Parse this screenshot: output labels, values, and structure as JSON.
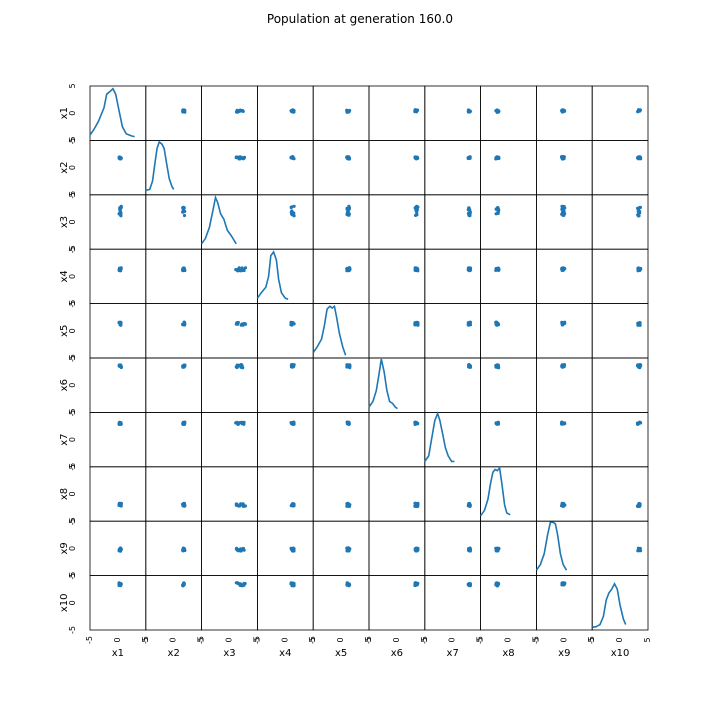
{
  "chart_data": {
    "type": "scatter",
    "title": "Population at generation 160.0",
    "variables": [
      "x1",
      "x2",
      "x3",
      "x4",
      "x5",
      "x6",
      "x7",
      "x8",
      "x9",
      "x10"
    ],
    "axis_range": [
      -5,
      5
    ],
    "tick_labels": [
      "-5",
      "0",
      "5"
    ],
    "grid": false,
    "color": "#1f77b4",
    "diagonal": "kde",
    "point_centers": [
      0.4,
      1.8,
      2.0,
      1.3,
      1.3,
      3.5,
      3.0,
      -2.0,
      -0.2,
      3.4
    ],
    "point_spread": [
      0.05,
      0.05,
      0.5,
      0.1,
      0.1,
      0.1,
      0.05,
      0.1,
      0.1,
      0.1
    ],
    "kde_curves": [
      [
        [
          -5,
          0.1
        ],
        [
          -4.3,
          0.2
        ],
        [
          -3.5,
          0.35
        ],
        [
          -2.5,
          0.6
        ],
        [
          -2.0,
          0.85
        ],
        [
          -1.4,
          0.9
        ],
        [
          -0.9,
          0.95
        ],
        [
          -0.4,
          0.85
        ],
        [
          0.2,
          0.55
        ],
        [
          0.8,
          0.25
        ],
        [
          1.5,
          0.12
        ],
        [
          2.5,
          0.08
        ],
        [
          3,
          0.07
        ]
      ],
      [
        [
          -5,
          0.08
        ],
        [
          -4.3,
          0.1
        ],
        [
          -3.8,
          0.25
        ],
        [
          -3.4,
          0.55
        ],
        [
          -3.0,
          0.85
        ],
        [
          -2.6,
          0.97
        ],
        [
          -2.1,
          0.93
        ],
        [
          -1.7,
          0.85
        ],
        [
          -1.3,
          0.6
        ],
        [
          -0.8,
          0.3
        ],
        [
          -0.3,
          0.15
        ],
        [
          0,
          0.1
        ]
      ],
      [
        [
          -5,
          0.1
        ],
        [
          -4.3,
          0.2
        ],
        [
          -3.6,
          0.4
        ],
        [
          -3.0,
          0.7
        ],
        [
          -2.5,
          0.95
        ],
        [
          -2.1,
          0.85
        ],
        [
          -1.6,
          0.65
        ],
        [
          -1.0,
          0.55
        ],
        [
          -0.4,
          0.35
        ],
        [
          0.3,
          0.25
        ],
        [
          0.9,
          0.15
        ],
        [
          1.2,
          0.1
        ]
      ],
      [
        [
          -5,
          0.1
        ],
        [
          -4.3,
          0.2
        ],
        [
          -3.5,
          0.3
        ],
        [
          -3.0,
          0.5
        ],
        [
          -2.6,
          0.88
        ],
        [
          -2.1,
          0.95
        ],
        [
          -1.6,
          0.8
        ],
        [
          -1.2,
          0.45
        ],
        [
          -0.7,
          0.2
        ],
        [
          0,
          0.1
        ],
        [
          0.5,
          0.08
        ]
      ],
      [
        [
          -5,
          0.1
        ],
        [
          -4.3,
          0.2
        ],
        [
          -3.5,
          0.35
        ],
        [
          -3.0,
          0.6
        ],
        [
          -2.5,
          0.9
        ],
        [
          -2.0,
          0.95
        ],
        [
          -1.6,
          0.92
        ],
        [
          -1.2,
          0.95
        ],
        [
          -0.8,
          0.75
        ],
        [
          -0.3,
          0.45
        ],
        [
          0.3,
          0.2
        ],
        [
          0.8,
          0.05
        ]
      ],
      [
        [
          -5,
          0.1
        ],
        [
          -4.3,
          0.2
        ],
        [
          -3.7,
          0.4
        ],
        [
          -3.2,
          0.7
        ],
        [
          -2.8,
          0.98
        ],
        [
          -2.3,
          0.75
        ],
        [
          -1.8,
          0.4
        ],
        [
          -1.3,
          0.2
        ],
        [
          -0.8,
          0.17
        ],
        [
          -0.3,
          0.1
        ],
        [
          0.1,
          0.07
        ]
      ],
      [
        [
          -5,
          0.1
        ],
        [
          -4.3,
          0.2
        ],
        [
          -3.8,
          0.5
        ],
        [
          -3.2,
          0.85
        ],
        [
          -2.7,
          0.98
        ],
        [
          -2.3,
          0.85
        ],
        [
          -1.8,
          0.6
        ],
        [
          -1.3,
          0.35
        ],
        [
          -0.8,
          0.2
        ],
        [
          -0.2,
          0.1
        ],
        [
          0.3,
          0.1
        ]
      ],
      [
        [
          -5,
          0.1
        ],
        [
          -4.3,
          0.2
        ],
        [
          -3.7,
          0.4
        ],
        [
          -3.2,
          0.7
        ],
        [
          -2.8,
          0.9
        ],
        [
          -2.4,
          0.95
        ],
        [
          -2.0,
          0.93
        ],
        [
          -1.6,
          0.98
        ],
        [
          -1.2,
          0.7
        ],
        [
          -0.7,
          0.3
        ],
        [
          -0.3,
          0.15
        ],
        [
          0.3,
          0.12
        ]
      ],
      [
        [
          -5,
          0.1
        ],
        [
          -4.3,
          0.2
        ],
        [
          -3.6,
          0.4
        ],
        [
          -3.0,
          0.75
        ],
        [
          -2.5,
          0.98
        ],
        [
          -2.0,
          0.98
        ],
        [
          -1.6,
          0.95
        ],
        [
          -1.2,
          0.75
        ],
        [
          -0.7,
          0.4
        ],
        [
          -0.2,
          0.2
        ],
        [
          0.4,
          0.1
        ]
      ],
      [
        [
          -5,
          0.05
        ],
        [
          -4.3,
          0.06
        ],
        [
          -3.6,
          0.1
        ],
        [
          -3.0,
          0.25
        ],
        [
          -2.5,
          0.55
        ],
        [
          -2.0,
          0.68
        ],
        [
          -1.5,
          0.75
        ],
        [
          -1.0,
          0.85
        ],
        [
          -0.5,
          0.75
        ],
        [
          0,
          0.45
        ],
        [
          0.6,
          0.2
        ],
        [
          1.0,
          0.1
        ]
      ]
    ]
  }
}
